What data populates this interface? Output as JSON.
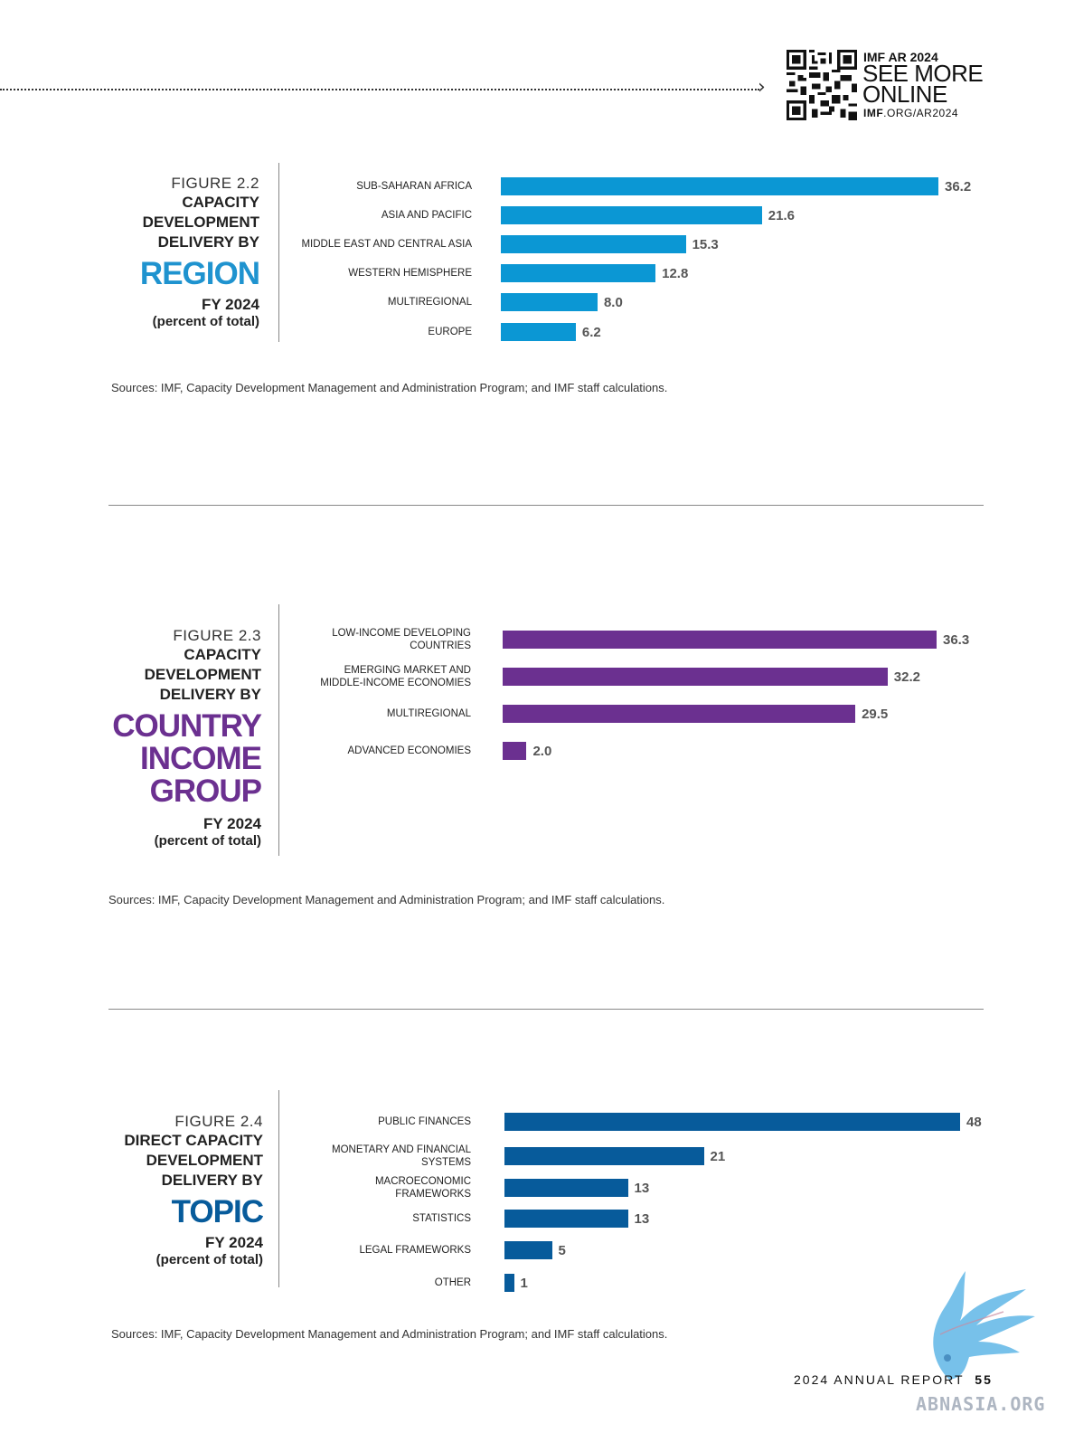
{
  "header": {
    "qr_tag": "IMF AR 2024",
    "see_more_line1": "SEE MORE",
    "see_more_line2": "ONLINE",
    "url_bold": "IMF",
    "url_rest": ".ORG/AR2024",
    "arrow_icon": "chevron-right-icon"
  },
  "figures": [
    {
      "number": "FIGURE 2.2",
      "subtitle": [
        "CAPACITY",
        "DEVELOPMENT",
        "DELIVERY BY"
      ],
      "big": [
        "REGION"
      ],
      "fy": "FY 2024",
      "unit": "(percent of total)",
      "color": "#0b97d4",
      "source": "Sources: IMF, Capacity Development Management and Administration Program; and IMF staff calculations."
    },
    {
      "number": "FIGURE 2.3",
      "subtitle": [
        "CAPACITY",
        "DEVELOPMENT",
        "DELIVERY BY"
      ],
      "big": [
        "COUNTRY",
        "INCOME",
        "GROUP"
      ],
      "fy": "FY 2024",
      "unit": "(percent of total)",
      "color": "#6b3090",
      "source": "Sources: IMF, Capacity Development Management and Administration Program; and IMF staff calculations."
    },
    {
      "number": "FIGURE 2.4",
      "subtitle": [
        "DIRECT CAPACITY",
        "DEVELOPMENT",
        "DELIVERY BY"
      ],
      "big": [
        "TOPIC"
      ],
      "fy": "FY 2024",
      "unit": "(percent of total)",
      "color": "#075b9b",
      "source": "Sources: IMF, Capacity Development Management and Administration Program; and IMF staff calculations."
    }
  ],
  "chart_data": [
    {
      "type": "bar",
      "orientation": "horizontal",
      "categories": [
        "SUB-SAHARAN AFRICA",
        "ASIA AND PACIFIC",
        "MIDDLE EAST AND CENTRAL ASIA",
        "WESTERN HEMISPHERE",
        "MULTIREGIONAL",
        "EUROPE"
      ],
      "values": [
        36.2,
        21.6,
        15.3,
        12.8,
        8.0,
        6.2
      ],
      "labels": [
        "36.2",
        "21.6",
        "15.3",
        "12.8",
        "8.0",
        "6.2"
      ],
      "color": "#0b97d4"
    },
    {
      "type": "bar",
      "orientation": "horizontal",
      "categories": [
        "LOW-INCOME DEVELOPING|COUNTRIES",
        "EMERGING MARKET AND|MIDDLE-INCOME ECONOMIES",
        "MULTIREGIONAL",
        "ADVANCED ECONOMIES"
      ],
      "values": [
        36.3,
        32.2,
        29.5,
        2.0
      ],
      "labels": [
        "36.3",
        "32.2",
        "29.5",
        "2.0"
      ],
      "color": "#6b3090"
    },
    {
      "type": "bar",
      "orientation": "horizontal",
      "categories": [
        "PUBLIC FINANCES",
        "MONETARY AND FINANCIAL|SYSTEMS",
        "MACROECONOMIC|FRAMEWORKS",
        "STATISTICS",
        "LEGAL FRAMEWORKS",
        "OTHER"
      ],
      "values": [
        48,
        21,
        13,
        13,
        5,
        1
      ],
      "labels": [
        "48",
        "21",
        "13",
        "13",
        "5",
        "1"
      ],
      "color": "#075b9b"
    }
  ],
  "footer": {
    "report": "2024 ANNUAL REPORT",
    "page": "55"
  },
  "watermark": "ABNASIA.ORG"
}
